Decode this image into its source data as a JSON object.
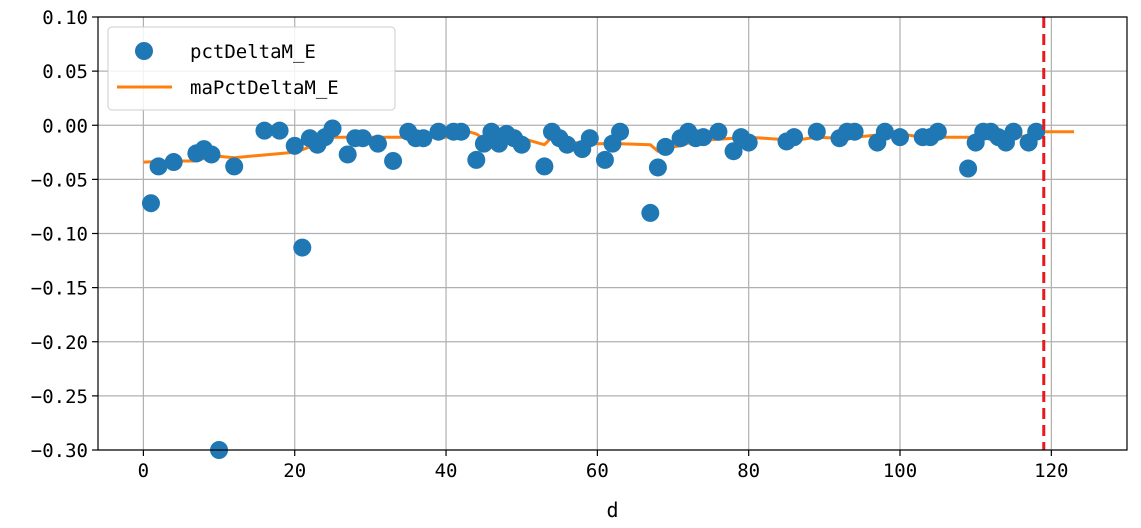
{
  "chart_data": {
    "type": "scatter",
    "xlabel": "d",
    "ylabel": "",
    "title": "",
    "xlim": [
      -6,
      130
    ],
    "ylim": [
      -0.3,
      0.1
    ],
    "x_ticks": [
      0,
      20,
      40,
      60,
      80,
      100,
      120
    ],
    "x_tick_labels": [
      "0",
      "20",
      "40",
      "60",
      "80",
      "100",
      "120"
    ],
    "y_ticks": [
      0.1,
      0.05,
      0.0,
      -0.05,
      -0.1,
      -0.15,
      -0.2,
      -0.25,
      -0.3
    ],
    "y_tick_labels": [
      "0.10",
      "0.05",
      "0.00",
      "−0.05",
      "−0.10",
      "−0.15",
      "−0.20",
      "−0.25",
      "−0.30"
    ],
    "grid": true,
    "legend_position": "top-left",
    "series": [
      {
        "name": "pctDeltaM_E",
        "kind": "scatter",
        "color": "#1f77b4",
        "points": [
          [
            1,
            -0.072
          ],
          [
            2,
            -0.038
          ],
          [
            4,
            -0.034
          ],
          [
            7,
            -0.026
          ],
          [
            8,
            -0.022
          ],
          [
            9,
            -0.027
          ],
          [
            10,
            -0.3
          ],
          [
            12,
            -0.038
          ],
          [
            16,
            -0.005
          ],
          [
            18,
            -0.005
          ],
          [
            20,
            -0.019
          ],
          [
            21,
            -0.113
          ],
          [
            22,
            -0.012
          ],
          [
            23,
            -0.018
          ],
          [
            24,
            -0.011
          ],
          [
            25,
            -0.003
          ],
          [
            27,
            -0.027
          ],
          [
            28,
            -0.012
          ],
          [
            29,
            -0.012
          ],
          [
            31,
            -0.017
          ],
          [
            33,
            -0.033
          ],
          [
            35,
            -0.006
          ],
          [
            36,
            -0.012
          ],
          [
            37,
            -0.012
          ],
          [
            39,
            -0.006
          ],
          [
            41,
            -0.006
          ],
          [
            42,
            -0.006
          ],
          [
            44,
            -0.032
          ],
          [
            45,
            -0.017
          ],
          [
            46,
            -0.006
          ],
          [
            47,
            -0.017
          ],
          [
            48,
            -0.008
          ],
          [
            49,
            -0.012
          ],
          [
            50,
            -0.018
          ],
          [
            53,
            -0.038
          ],
          [
            54,
            -0.006
          ],
          [
            55,
            -0.012
          ],
          [
            56,
            -0.018
          ],
          [
            58,
            -0.022
          ],
          [
            59,
            -0.012
          ],
          [
            61,
            -0.032
          ],
          [
            62,
            -0.017
          ],
          [
            63,
            -0.006
          ],
          [
            67,
            -0.081
          ],
          [
            68,
            -0.039
          ],
          [
            69,
            -0.02
          ],
          [
            71,
            -0.012
          ],
          [
            72,
            -0.006
          ],
          [
            73,
            -0.012
          ],
          [
            74,
            -0.011
          ],
          [
            76,
            -0.006
          ],
          [
            78,
            -0.024
          ],
          [
            79,
            -0.011
          ],
          [
            80,
            -0.016
          ],
          [
            85,
            -0.015
          ],
          [
            86,
            -0.011
          ],
          [
            89,
            -0.006
          ],
          [
            92,
            -0.012
          ],
          [
            93,
            -0.006
          ],
          [
            94,
            -0.006
          ],
          [
            97,
            -0.016
          ],
          [
            98,
            -0.006
          ],
          [
            100,
            -0.011
          ],
          [
            103,
            -0.011
          ],
          [
            104,
            -0.011
          ],
          [
            105,
            -0.006
          ],
          [
            109,
            -0.04
          ],
          [
            110,
            -0.016
          ],
          [
            111,
            -0.006
          ],
          [
            112,
            -0.006
          ],
          [
            113,
            -0.011
          ],
          [
            114,
            -0.016
          ],
          [
            115,
            -0.006
          ],
          [
            117,
            -0.016
          ],
          [
            118,
            -0.006
          ]
        ]
      },
      {
        "name": "maPctDeltaM_E",
        "kind": "line",
        "color": "#ff7f0e",
        "points": [
          [
            0,
            -0.034
          ],
          [
            4,
            -0.033
          ],
          [
            7,
            -0.033
          ],
          [
            9,
            -0.028
          ],
          [
            12,
            -0.03
          ],
          [
            15,
            -0.028
          ],
          [
            20,
            -0.025
          ],
          [
            22,
            -0.02
          ],
          [
            24,
            -0.011
          ],
          [
            27,
            -0.011
          ],
          [
            30,
            -0.011
          ],
          [
            35,
            -0.011
          ],
          [
            40,
            -0.011
          ],
          [
            42,
            -0.01
          ],
          [
            43,
            -0.006
          ],
          [
            44,
            -0.008
          ],
          [
            45,
            -0.013
          ],
          [
            47,
            -0.008
          ],
          [
            49,
            -0.01
          ],
          [
            52,
            -0.016
          ],
          [
            53,
            -0.018
          ],
          [
            54,
            -0.011
          ],
          [
            56,
            -0.012
          ],
          [
            57,
            -0.016
          ],
          [
            60,
            -0.017
          ],
          [
            63,
            -0.017
          ],
          [
            67,
            -0.018
          ],
          [
            68,
            -0.024
          ],
          [
            69,
            -0.021
          ],
          [
            71,
            -0.019
          ],
          [
            73,
            -0.014
          ],
          [
            76,
            -0.013
          ],
          [
            80,
            -0.011
          ],
          [
            84,
            -0.013
          ],
          [
            86,
            -0.014
          ],
          [
            89,
            -0.011
          ],
          [
            92,
            -0.012
          ],
          [
            94,
            -0.011
          ],
          [
            97,
            -0.009
          ],
          [
            98,
            -0.006
          ],
          [
            100,
            -0.008
          ],
          [
            103,
            -0.011
          ],
          [
            110,
            -0.011
          ],
          [
            117,
            -0.01
          ],
          [
            118,
            -0.007
          ],
          [
            119,
            -0.006
          ],
          [
            123,
            -0.006
          ]
        ]
      }
    ],
    "reference_line": {
      "orientation": "vertical",
      "x": 119,
      "color": "#e41a1c",
      "style": "dashed"
    }
  }
}
